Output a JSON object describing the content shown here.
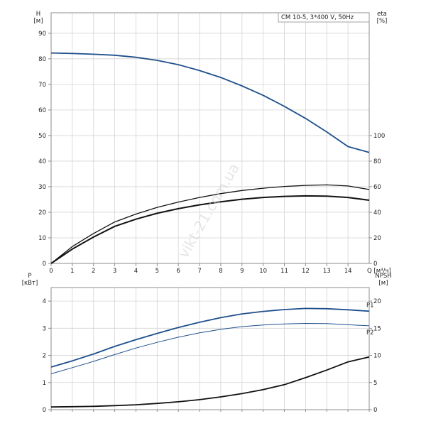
{
  "title": "CM 10-5, 3*400 V, 50Hz",
  "watermark": "vikt-21.com.ua",
  "chart_data": [
    {
      "type": "line",
      "x_label": "Q [м³/ч]",
      "x_ticks": [
        "0",
        "1",
        "2",
        "3",
        "4",
        "5",
        "6",
        "7",
        "8",
        "9",
        "10",
        "11",
        "12",
        "13",
        "14"
      ],
      "xlim": [
        0,
        15
      ],
      "y_left": {
        "label_top": "H",
        "label_unit": "[м]",
        "lim": [
          0,
          98
        ],
        "ticks": [
          "0",
          "10",
          "20",
          "30",
          "40",
          "50",
          "60",
          "70",
          "80",
          "90"
        ]
      },
      "y_right": {
        "label_top": "eta",
        "label_unit": "[%]",
        "lim": [
          0,
          196
        ],
        "ticks": [
          "0",
          "20",
          "40",
          "60",
          "80",
          "100"
        ]
      },
      "grid": true,
      "series": [
        {
          "axis": "left",
          "color": "#1e4f8c",
          "x": [
            0,
            1,
            2,
            3,
            4,
            5,
            6,
            7,
            8,
            9,
            10,
            11,
            12,
            13,
            14,
            15
          ],
          "y": [
            82.3,
            82.1,
            81.8,
            81.4,
            80.6,
            79.4,
            77.7,
            75.4,
            72.7,
            69.4,
            65.7,
            61.4,
            56.7,
            51.4,
            45.7,
            43.4
          ]
        },
        {
          "axis": "right",
          "color": "#111111",
          "x": [
            0,
            1,
            2,
            3,
            4,
            5,
            6,
            7,
            8,
            9,
            10,
            11,
            12,
            13,
            14,
            15
          ],
          "y": [
            0,
            13.2,
            23.4,
            32.4,
            38.6,
            43.8,
            48.0,
            51.6,
            54.6,
            57.0,
            58.8,
            60.2,
            61.0,
            61.4,
            60.6,
            57.8
          ]
        },
        {
          "axis": "right",
          "color": "#111111",
          "x": [
            0,
            1,
            2,
            3,
            4,
            5,
            6,
            7,
            8,
            9,
            10,
            11,
            12,
            13,
            14,
            15
          ],
          "y": [
            0,
            11.2,
            20.6,
            29.0,
            34.6,
            39.2,
            42.8,
            45.8,
            48.2,
            50.2,
            51.6,
            52.4,
            52.8,
            52.6,
            51.6,
            49.4
          ]
        }
      ]
    },
    {
      "type": "line",
      "y_left": {
        "label_top": "P",
        "label_unit": "[кВт]",
        "lim": [
          0,
          4.5
        ],
        "ticks": [
          "0",
          "1",
          "2",
          "3",
          "4"
        ]
      },
      "y_right": {
        "label_top": "NPSH",
        "label_unit": "[м]",
        "lim": [
          0,
          22.5
        ],
        "ticks": [
          "0",
          "5",
          "10",
          "15",
          "20"
        ]
      },
      "xlim": [
        0,
        15
      ],
      "grid": true,
      "series": [
        {
          "name": "P1",
          "axis": "left",
          "color": "#1e4f8c",
          "x": [
            0,
            1,
            2,
            3,
            4,
            5,
            6,
            7,
            8,
            9,
            10,
            11,
            12,
            13,
            14,
            15
          ],
          "y": [
            1.57,
            1.8,
            2.05,
            2.33,
            2.58,
            2.81,
            3.03,
            3.22,
            3.39,
            3.53,
            3.62,
            3.69,
            3.73,
            3.72,
            3.68,
            3.63
          ]
        },
        {
          "name": "P2",
          "axis": "left",
          "color": "#1e4f8c",
          "x": [
            0,
            1,
            2,
            3,
            4,
            5,
            6,
            7,
            8,
            9,
            10,
            11,
            12,
            13,
            14,
            15
          ],
          "y": [
            1.32,
            1.55,
            1.78,
            2.03,
            2.27,
            2.48,
            2.67,
            2.83,
            2.96,
            3.06,
            3.12,
            3.16,
            3.18,
            3.17,
            3.13,
            3.09
          ]
        },
        {
          "axis": "right",
          "color": "#111111",
          "x": [
            0,
            1,
            2,
            3,
            4,
            5,
            6,
            7,
            8,
            9,
            10,
            11,
            12,
            13,
            14,
            15
          ],
          "y": [
            0.5,
            0.55,
            0.62,
            0.75,
            0.9,
            1.15,
            1.45,
            1.85,
            2.35,
            2.95,
            3.7,
            4.6,
            5.9,
            7.3,
            8.8,
            9.7
          ]
        }
      ]
    }
  ]
}
